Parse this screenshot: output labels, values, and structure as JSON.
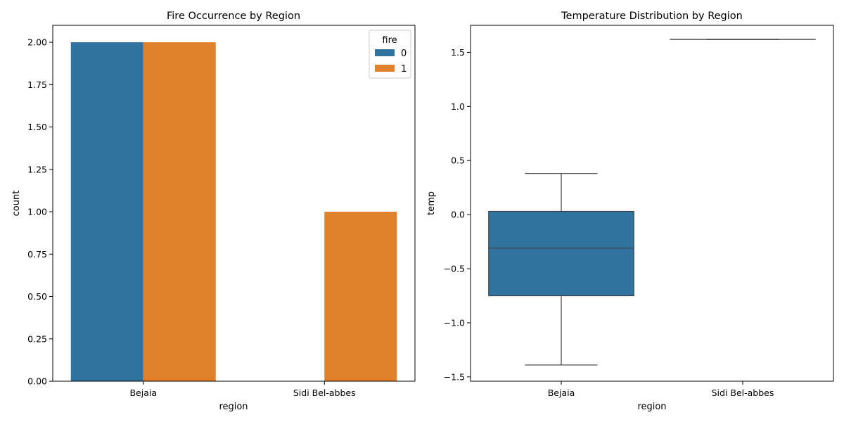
{
  "colors": {
    "fire_0": "#3274a1",
    "fire_1": "#e1812c",
    "box_fill": "#3274a1",
    "box_line": "#3d3d3d",
    "axis": "#000000"
  },
  "chart_data": [
    {
      "type": "bar",
      "title": "Fire Occurrence by Region",
      "xlabel": "region",
      "ylabel": "count",
      "categories": [
        "Bejaia",
        "Sidi Bel-abbes"
      ],
      "series": [
        {
          "name": "0",
          "values": [
            2,
            0
          ]
        },
        {
          "name": "1",
          "values": [
            2,
            1
          ]
        }
      ],
      "ylim": [
        0,
        2.1
      ],
      "yticks": [
        0,
        0.25,
        0.5,
        0.75,
        1,
        1.25,
        1.5,
        1.75,
        2
      ],
      "ytick_labels": [
        "0.00",
        "0.25",
        "0.50",
        "0.75",
        "1.00",
        "1.25",
        "1.50",
        "1.75",
        "2.00"
      ],
      "legend": {
        "title": "fire",
        "placement": "top-right"
      },
      "grid": false
    },
    {
      "type": "box",
      "title": "Temperature Distribution by Region",
      "xlabel": "region",
      "ylabel": "temp",
      "categories": [
        "Bejaia",
        "Sidi Bel-abbes"
      ],
      "boxes": [
        {
          "category": "Bejaia",
          "whisker_low": -1.39,
          "q1": -0.75,
          "median": -0.31,
          "q3": 0.03,
          "whisker_high": 0.38
        },
        {
          "category": "Sidi Bel-abbes",
          "whisker_low": 1.62,
          "q1": 1.62,
          "median": 1.62,
          "q3": 1.62,
          "whisker_high": 1.62
        }
      ],
      "ylim": [
        -1.54,
        1.75
      ],
      "yticks": [
        -1.5,
        -1,
        -0.5,
        0,
        0.5,
        1,
        1.5
      ],
      "ytick_labels": [
        "−1.5",
        "−1.0",
        "−0.5",
        "0.0",
        "0.5",
        "1.0",
        "1.5"
      ],
      "grid": false
    }
  ]
}
